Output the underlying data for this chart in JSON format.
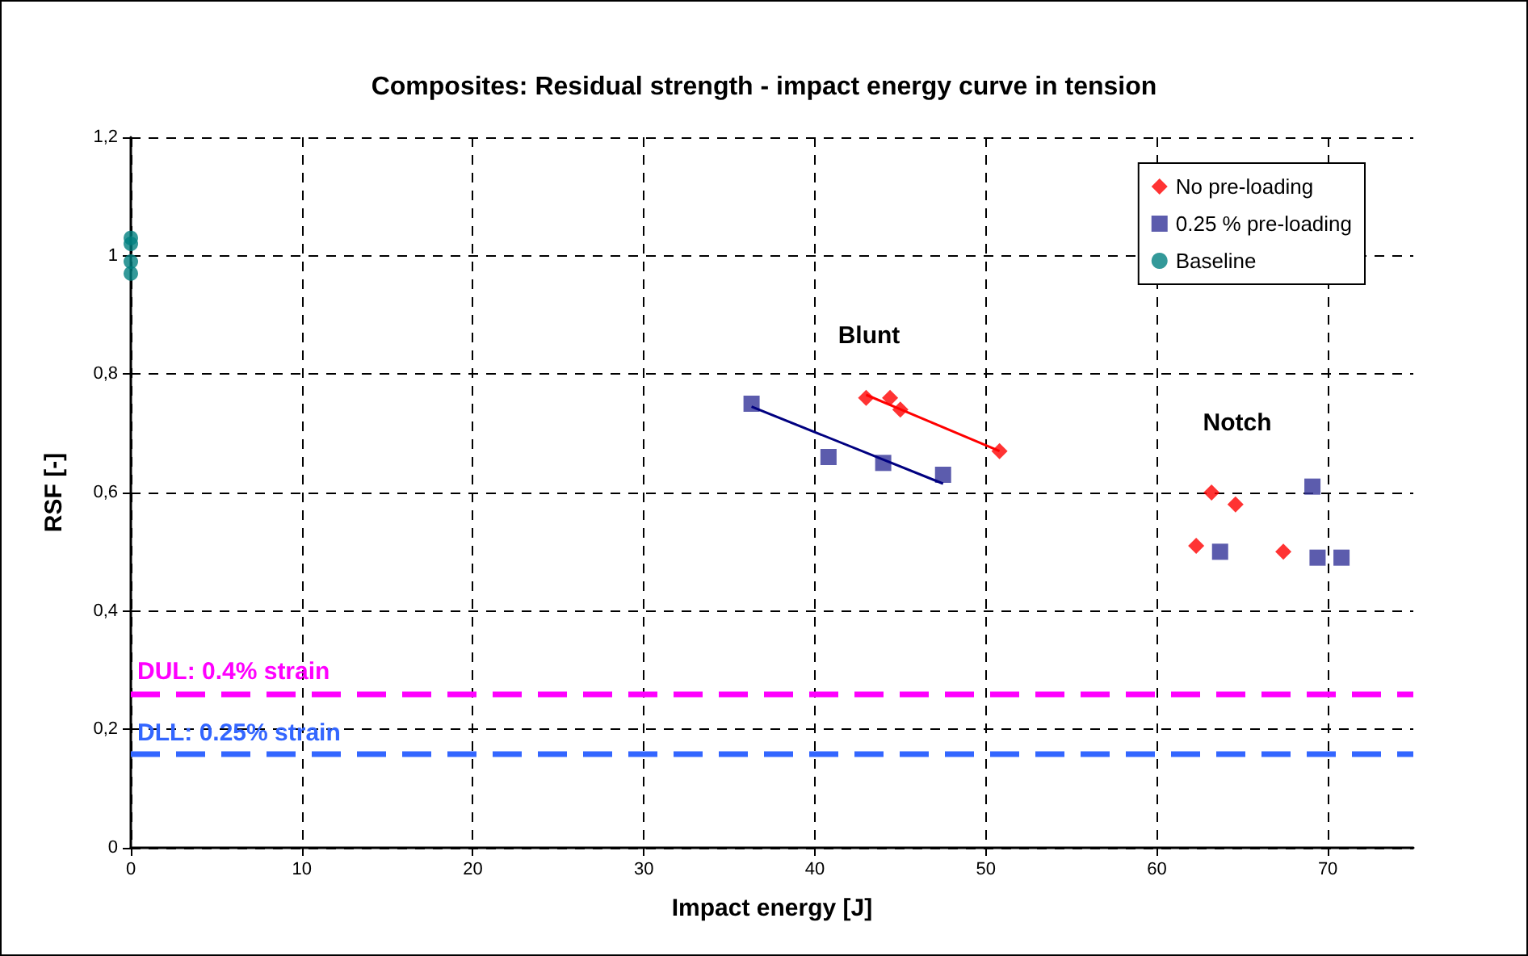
{
  "chart_data": {
    "type": "scatter",
    "title": "Composites: Residual strength - impact energy curve in tension",
    "xlabel": "Impact energy [J]",
    "ylabel": "RSF [-]",
    "xlim": [
      0,
      75
    ],
    "xticks": [
      0,
      10,
      20,
      30,
      40,
      50,
      60,
      70
    ],
    "ylim": [
      0,
      1.2
    ],
    "yticks": [
      0,
      {
        "value": 0.2,
        "label": "0,2"
      },
      {
        "value": 0.4,
        "label": "0,4"
      },
      {
        "value": 0.6,
        "label": "0,6"
      },
      {
        "value": 0.8,
        "label": "0,8"
      },
      {
        "value": 1,
        "label": "1"
      },
      {
        "value": 1.2,
        "label": "1,2"
      }
    ],
    "grid": true,
    "legend": "top right",
    "series": [
      {
        "name": "No pre-loading",
        "color": "#ff0000",
        "marker": "diamond",
        "x": [
          43.0,
          44.4,
          45.0,
          50.8,
          63.2,
          64.6,
          62.3,
          67.4
        ],
        "values": [
          0.76,
          0.76,
          0.74,
          0.67,
          0.6,
          0.58,
          0.51,
          0.5
        ]
      },
      {
        "name": "0.25 % pre-loading",
        "color": "#333399",
        "marker": "square",
        "x": [
          36.3,
          40.8,
          44.0,
          47.5,
          63.7,
          69.1,
          69.4,
          70.8
        ],
        "values": [
          0.75,
          0.66,
          0.65,
          0.63,
          0.5,
          0.61,
          0.49,
          0.49
        ]
      },
      {
        "name": "Baseline",
        "color": "#008080",
        "marker": "circle",
        "x": [
          0,
          0,
          0,
          0
        ],
        "values": [
          1.03,
          1.02,
          0.99,
          0.97
        ]
      },
      {
        "type": "line",
        "color": "#ff0000",
        "marker": "none",
        "x": [
          43.0,
          50.8
        ],
        "values": [
          0.765,
          0.67
        ]
      },
      {
        "type": "line",
        "color": "#000080",
        "marker": "none",
        "x": [
          36.3,
          47.5
        ],
        "values": [
          0.745,
          0.615
        ]
      }
    ],
    "ref_lines": [
      {
        "axis": "y",
        "value": 0.26,
        "color": "#ff00ff",
        "line_style": "dashed"
      },
      {
        "axis": "y",
        "value": 0.16,
        "color": "#3366ff",
        "line_style": "dashed"
      }
    ],
    "annotations": [
      "Blunt",
      "Notch",
      "DUL: 0.4% strain",
      "DLL: 0.25% strain"
    ]
  }
}
